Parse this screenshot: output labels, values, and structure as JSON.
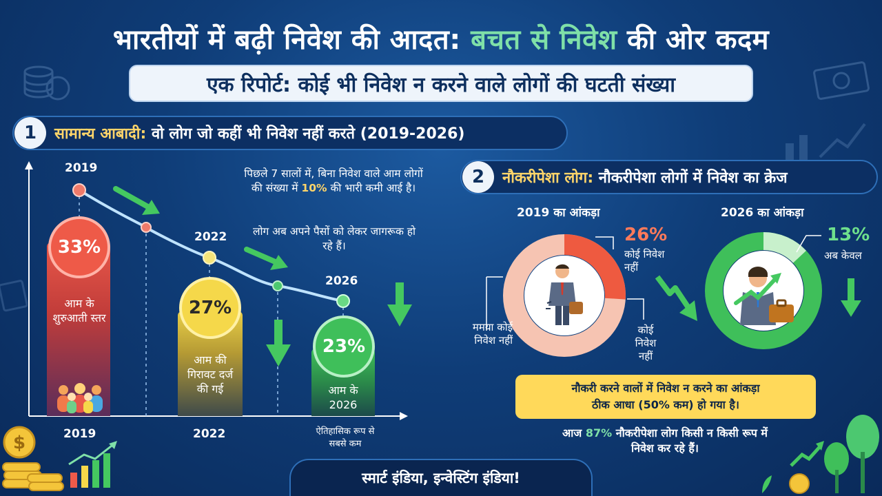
{
  "header": {
    "title_part1": "भारतीयों में बढ़ी निवेश की आदत:",
    "title_part2": "बचत से निवेश",
    "title_part3": "की ओर कदम",
    "subtitle": "एक रिपोर्ट: कोई भी निवेश न करने वाले लोगों की घटती संख्या"
  },
  "section1": {
    "number": "1",
    "label_highlight": "सामान्य आबादी:",
    "label_rest": "वो लोग जो कहीं भी निवेश नहीं करते (2019-2026)",
    "points": [
      {
        "year": "2019",
        "value": 33,
        "value_label": "33%",
        "bar_text": "आम के शुरुआती स्तर"
      },
      {
        "year": "2022",
        "value": 27,
        "value_label": "27%",
        "bar_text": "आम की गिरावट दर्ज की गई"
      },
      {
        "year": "2026",
        "value": 23,
        "value_label": "23%",
        "bar_text": "आम के 2026"
      }
    ],
    "axis_years": [
      "2019",
      "2022"
    ],
    "historic_note": "ऐतिहासिक रूप से सबसे कम",
    "note1_a": "पिछले 7 सालों में, बिना निवेश वाले आम लोगों की संख्या में",
    "note1_pct": "10%",
    "note1_b": "की भारी कमी आई है।",
    "note2": "लोग अब अपने पैसों को लेकर जागरूक हो रहे हैं।"
  },
  "section2": {
    "number": "2",
    "label_highlight": "नौकरीपेशा लोग:",
    "label_rest": "नौकरीपेशा लोगों में निवेश का क्रेज",
    "fig2019": {
      "label": "2019 का आंकड़ा",
      "value": 26,
      "pct": "26%",
      "pct_text": "कोई निवेश नहीं",
      "left_text": "ममया कोई निवेश नहीं",
      "right_text": "कोई निवेश नहीं"
    },
    "fig2026": {
      "label": "2026 का आंकड़ा",
      "value": 13,
      "pct": "13%",
      "pct_text": "अब केवल"
    },
    "callout_line1": "नौकरी करने वालों में निवेश न करने का आंकड़ा",
    "callout_line2": "ठीक आधा (50% कम) हो गया है।",
    "today_a": "आज",
    "today_pct": "87%",
    "today_b": "नौकरीपेशा लोग किसी न किसी रूप में",
    "today_c": "निवेश कर रहे हैं।"
  },
  "footer": {
    "text": "स्मार्ट इंडिया, इन्वेस्टिंग इंडिया!"
  },
  "colors": {
    "bg": "#0f3d78",
    "red": "#ef5a4a",
    "yellow": "#f5d84a",
    "green": "#3fbf5a",
    "highlight": "#ffd56a",
    "mint": "#7fe0a8",
    "callout": "#ffd95a"
  },
  "icons": [
    "coins-icon",
    "dollar-note-icon",
    "people-group-icon",
    "coin-stack-icon",
    "growth-chart-icon",
    "businessman-icon",
    "briefcase-icon",
    "trend-arrow-icon",
    "down-arrow-icon",
    "tree-icon",
    "plant-icon"
  ]
}
